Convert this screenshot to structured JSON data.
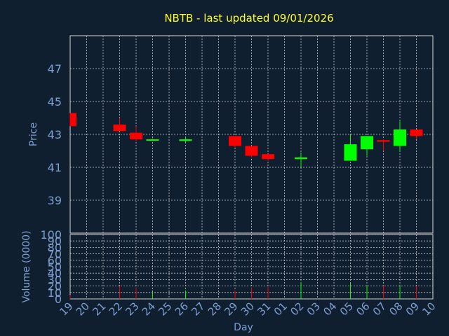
{
  "colors": {
    "background": "#0f1f30",
    "frame": "#d8d8d8",
    "grid": "#c8c8c8",
    "title": "#ffff2a",
    "axis_text": "#7f9fcf",
    "up": "#00ff00",
    "down": "#ff0000"
  },
  "chart_data": [
    {
      "type": "candlestick",
      "title": "NBTB - last updated 09/01/2026",
      "ylabel": "Price",
      "ylim": [
        37,
        49
      ],
      "yticks": [
        "39",
        "41",
        "43",
        "45",
        "47"
      ],
      "grid": true,
      "x": [
        "19",
        "20",
        "21",
        "22",
        "23",
        "24",
        "25",
        "26",
        "27",
        "28",
        "29",
        "30",
        "31",
        "01",
        "02",
        "03",
        "04",
        "05",
        "06",
        "07",
        "08",
        "09",
        "10"
      ],
      "candles": [
        {
          "x": "19",
          "open": 44.3,
          "high": 44.3,
          "low": 43.5,
          "close": 43.5
        },
        {
          "x": "22",
          "open": 43.6,
          "high": 44.0,
          "low": 43.2,
          "close": 43.2
        },
        {
          "x": "23",
          "open": 43.1,
          "high": 43.5,
          "low": 42.6,
          "close": 42.7
        },
        {
          "x": "24",
          "open": 42.65,
          "high": 42.75,
          "low": 42.6,
          "close": 42.7
        },
        {
          "x": "26",
          "open": 42.6,
          "high": 42.8,
          "low": 42.5,
          "close": 42.7
        },
        {
          "x": "29",
          "open": 42.9,
          "high": 42.9,
          "low": 42.2,
          "close": 42.3
        },
        {
          "x": "30",
          "open": 42.3,
          "high": 42.3,
          "low": 41.6,
          "close": 41.7
        },
        {
          "x": "31",
          "open": 41.8,
          "high": 41.8,
          "low": 41.4,
          "close": 41.5
        },
        {
          "x": "02",
          "open": 41.5,
          "high": 41.9,
          "low": 41.0,
          "close": 41.6
        },
        {
          "x": "05",
          "open": 41.4,
          "high": 43.0,
          "low": 41.4,
          "close": 42.4
        },
        {
          "x": "06",
          "open": 42.1,
          "high": 42.9,
          "low": 41.7,
          "close": 42.9
        },
        {
          "x": "07",
          "open": 42.65,
          "high": 42.7,
          "low": 42.0,
          "close": 42.55
        },
        {
          "x": "08",
          "open": 42.3,
          "high": 43.8,
          "low": 42.0,
          "close": 43.3
        },
        {
          "x": "09",
          "open": 43.3,
          "high": 43.3,
          "low": 42.7,
          "close": 42.9
        }
      ]
    },
    {
      "type": "bar",
      "ylabel": "Volume (0000)",
      "xlabel": "Day",
      "ylim": [
        0,
        100
      ],
      "yticks": [
        "0",
        "10",
        "20",
        "30",
        "40",
        "50",
        "60",
        "70",
        "80",
        "90",
        "100"
      ],
      "x": [
        "19",
        "20",
        "21",
        "22",
        "23",
        "24",
        "25",
        "26",
        "27",
        "28",
        "29",
        "30",
        "31",
        "01",
        "02",
        "03",
        "04",
        "05",
        "06",
        "07",
        "08",
        "09",
        "10"
      ],
      "bars": [
        {
          "x": "19",
          "value": 6,
          "direction": "down"
        },
        {
          "x": "22",
          "value": 20,
          "direction": "down"
        },
        {
          "x": "23",
          "value": 18,
          "direction": "down"
        },
        {
          "x": "24",
          "value": 11,
          "direction": "up"
        },
        {
          "x": "26",
          "value": 13,
          "direction": "up"
        },
        {
          "x": "29",
          "value": 13,
          "direction": "down"
        },
        {
          "x": "30",
          "value": 17,
          "direction": "down"
        },
        {
          "x": "31",
          "value": 19,
          "direction": "down"
        },
        {
          "x": "02",
          "value": 26,
          "direction": "up"
        },
        {
          "x": "05",
          "value": 24,
          "direction": "up"
        },
        {
          "x": "06",
          "value": 21,
          "direction": "up"
        },
        {
          "x": "07",
          "value": 21,
          "direction": "down"
        },
        {
          "x": "08",
          "value": 22,
          "direction": "up"
        },
        {
          "x": "09",
          "value": 20,
          "direction": "down"
        }
      ]
    }
  ]
}
